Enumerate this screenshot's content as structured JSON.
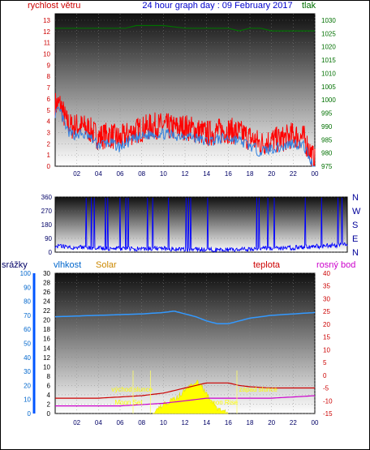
{
  "title": "24 hour graph day : 09 February 2017",
  "top": {
    "left_label": "rychlost větru",
    "right_label": "tlak",
    "left_ticks": [
      "0",
      "1",
      "2",
      "3",
      "4",
      "5",
      "6",
      "7",
      "8",
      "9",
      "10",
      "11",
      "12",
      "13"
    ],
    "right_ticks": [
      "975",
      "980",
      "985",
      "990",
      "995",
      "1000",
      "1005",
      "1010",
      "1015",
      "1020",
      "1025",
      "1030"
    ],
    "x_ticks": [
      "02",
      "04",
      "06",
      "08",
      "10",
      "12",
      "14",
      "16",
      "18",
      "20",
      "22",
      "00"
    ]
  },
  "middle": {
    "left_ticks": [
      "0",
      "90",
      "180",
      "270",
      "360"
    ],
    "right_labels": [
      "N",
      "W",
      "S",
      "E",
      "N"
    ]
  },
  "bottom": {
    "labels": {
      "rain": "srážky",
      "humidity": "vlhkost",
      "solar": "Solar",
      "temp": "teplota",
      "dew": "rosný bod"
    },
    "humidity_ticks": [
      "0",
      "10",
      "20",
      "30",
      "40",
      "50",
      "60",
      "70",
      "80",
      "90",
      "100"
    ],
    "solar_ticks": [
      "0",
      "2",
      "4",
      "6",
      "8",
      "10",
      "12",
      "14",
      "16",
      "18",
      "20",
      "22",
      "24",
      "26",
      "28",
      "30"
    ],
    "temp_ticks": [
      "40",
      "35",
      "30",
      "25",
      "20",
      "15",
      "10",
      "5",
      "0",
      "-5",
      "-10",
      "-15"
    ],
    "x_ticks": [
      "02",
      "04",
      "06",
      "08",
      "10",
      "12",
      "14",
      "16",
      "18",
      "20",
      "22",
      "00"
    ],
    "annotations": {
      "sunrise": "východ slunce",
      "sunset": "západ slunce",
      "moonset": "Moon Set",
      "moonrise": "Moon Rise"
    }
  },
  "colors": {
    "wind": "#ff0000",
    "gust_avg": "#3080e0",
    "pressure": "#007000",
    "direction": "#0000ff",
    "humidity": "#3399ff",
    "temp": "#cc0000",
    "dew": "#cc00cc",
    "solar": "#ffff00",
    "rain": "#0055ff"
  },
  "chart_data": [
    {
      "type": "line",
      "title": "24 hour graph day : 09 February 2017",
      "x_unit": "hour of day",
      "x_range": [
        0,
        24
      ],
      "ylim_left": [
        0,
        13
      ],
      "ylim_right": [
        975,
        1030
      ],
      "series": [
        {
          "name": "rychlost větru",
          "axis": "left",
          "x": [
            0.5,
            1,
            1.5,
            2,
            3,
            4,
            5,
            6,
            7,
            8,
            9,
            10,
            11,
            12,
            13,
            14,
            15,
            16,
            17,
            18,
            19,
            20,
            21,
            22,
            23,
            24
          ],
          "y": [
            5.5,
            4.0,
            3.5,
            3.6,
            3.4,
            2.6,
            2.8,
            2.4,
            3.0,
            3.3,
            3.6,
            3.6,
            3.4,
            3.5,
            3.2,
            2.9,
            3.1,
            3.2,
            3.0,
            2.5,
            2.0,
            2.3,
            2.4,
            2.8,
            2.5,
            0.4
          ]
        },
        {
          "name": "tlak",
          "axis": "right",
          "x": [
            0,
            5,
            6.5,
            7.5,
            10,
            12,
            14,
            16,
            17,
            18,
            19,
            20,
            21,
            22,
            24
          ],
          "y": [
            1027,
            1027,
            1027,
            1028,
            1028,
            1027,
            1027,
            1027,
            1026,
            1027,
            1027,
            1026,
            1026,
            1026,
            1026
          ]
        }
      ]
    },
    {
      "type": "line",
      "x_range": [
        0,
        24
      ],
      "ylim": [
        0,
        360
      ],
      "series": [
        {
          "x": [
            0,
            2,
            4,
            6,
            8,
            10,
            12,
            14,
            16,
            18,
            20,
            22,
            24
          ],
          "y": [
            40,
            30,
            25,
            20,
            25,
            20,
            18,
            15,
            20,
            25,
            30,
            40,
            50
          ]
        }
      ]
    },
    {
      "type": "line",
      "x_range": [
        0,
        24
      ],
      "ylim_humidity": [
        0,
        100
      ],
      "ylim_solar": [
        0,
        30
      ],
      "ylim_temp": [
        -15,
        40
      ],
      "series": [
        {
          "name": "vlhkost",
          "axis": "humidity",
          "x": [
            0,
            4,
            8,
            10,
            11,
            12,
            13,
            14,
            15,
            16,
            17,
            18,
            20,
            22,
            24
          ],
          "y": [
            69,
            70,
            71,
            72,
            73,
            71,
            69,
            66,
            64,
            64,
            66,
            68,
            70,
            71,
            72
          ]
        },
        {
          "name": "teplota",
          "axis": "temp",
          "x": [
            0,
            4,
            8,
            10,
            12,
            13,
            14,
            15,
            16,
            17,
            18,
            20,
            22,
            24
          ],
          "y": [
            -9,
            -9,
            -8,
            -7,
            -5,
            -4,
            -3,
            -3,
            -3,
            -4,
            -4.5,
            -5,
            -5,
            -5
          ]
        },
        {
          "name": "rosný bod",
          "axis": "temp",
          "x": [
            0,
            6,
            8,
            10,
            12,
            14,
            16,
            18,
            20,
            22,
            24
          ],
          "y": [
            -12,
            -12,
            -11.5,
            -11,
            -10,
            -9,
            -9,
            -9,
            -9,
            -8.5,
            -8
          ]
        },
        {
          "name": "Solar",
          "axis": "solar",
          "x": [
            9,
            10,
            11,
            12,
            12.5,
            13,
            13.5,
            14,
            15,
            16
          ],
          "y": [
            0,
            2,
            3,
            5,
            6,
            7,
            6,
            4,
            1,
            0
          ]
        }
      ]
    }
  ]
}
